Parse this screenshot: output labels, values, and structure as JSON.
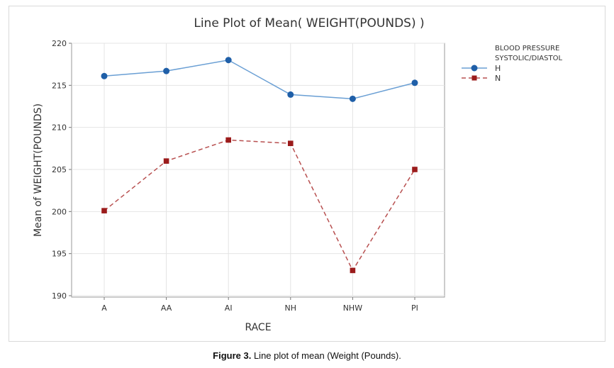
{
  "chart_data": {
    "type": "line",
    "title": "Line Plot of Mean( WEIGHT(POUNDS) )",
    "xlabel": "RACE",
    "ylabel": "Mean of WEIGHT(POUNDS)",
    "categories": [
      "A",
      "AA",
      "AI",
      "NH",
      "NHW",
      "PI"
    ],
    "ylim": [
      190,
      220
    ],
    "yticks": [
      190,
      195,
      200,
      205,
      210,
      215,
      220
    ],
    "grid": true,
    "legend_title": "BLOOD PRESSURE SYSTOLIC/DIASTOL",
    "legend_title_lines": [
      "BLOOD PRESSURE",
      "SYSTOLIC/DIASTOL"
    ],
    "legend_position": "right",
    "series": [
      {
        "name": "H",
        "values": [
          216.1,
          216.7,
          218.0,
          213.9,
          213.4,
          215.3
        ],
        "color": "#1f5fa8",
        "line_color": "#6a9fd4",
        "marker": "circle",
        "dash": "solid"
      },
      {
        "name": "N",
        "values": [
          200.1,
          206.0,
          208.5,
          208.1,
          193.0,
          205.0
        ],
        "color": "#9b1b1b",
        "line_color": "#b85050",
        "marker": "square",
        "dash": "dashed"
      }
    ]
  },
  "caption": {
    "label": "Figure 3.",
    "text": " Line plot of mean (Weight (Pounds)."
  }
}
